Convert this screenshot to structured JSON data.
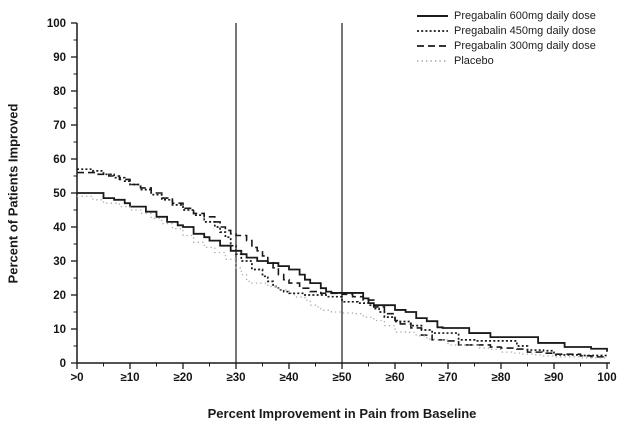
{
  "chart_data": {
    "type": "line",
    "subtype": "step",
    "title": "",
    "xlabel": "Percent Improvement in Pain from Baseline",
    "ylabel": "Percent of Patients Improved",
    "xlim": [
      0,
      100
    ],
    "ylim": [
      0,
      100
    ],
    "x_tick_values": [
      0,
      10,
      20,
      30,
      40,
      50,
      60,
      70,
      80,
      90,
      100
    ],
    "x_tick_labels": [
      ">0",
      "≥10",
      "≥20",
      "≥30",
      "≥40",
      "≥50",
      "≥60",
      "≥70",
      "≥80",
      "≥90",
      "100"
    ],
    "y_tick_values": [
      0,
      10,
      20,
      30,
      40,
      50,
      60,
      70,
      80,
      90,
      100
    ],
    "y_tick_labels": [
      "0",
      "10",
      "20",
      "30",
      "40",
      "50",
      "60",
      "70",
      "80",
      "90",
      "100"
    ],
    "minor_tick_step": 5,
    "grid": false,
    "reference_lines_x": [
      30,
      50
    ],
    "legend_position": "top-right",
    "axis_color": "#1a1a1a",
    "reference_line_color": "#3d3d3d",
    "series": [
      {
        "name": "Pregabalin 600mg daily dose",
        "style": "solid",
        "color": "#1a1a1a",
        "points": [
          [
            0,
            50
          ],
          [
            5,
            48.5
          ],
          [
            7,
            48
          ],
          [
            9,
            47
          ],
          [
            10,
            46
          ],
          [
            13,
            44.5
          ],
          [
            15,
            43
          ],
          [
            17,
            41.5
          ],
          [
            19,
            40.5
          ],
          [
            20,
            40
          ],
          [
            22,
            38
          ],
          [
            24,
            37
          ],
          [
            25,
            36
          ],
          [
            27,
            34.5
          ],
          [
            29,
            33
          ],
          [
            31,
            32
          ],
          [
            32,
            31
          ],
          [
            34,
            30
          ],
          [
            36,
            29.4
          ],
          [
            38,
            28.5
          ],
          [
            40,
            27.5
          ],
          [
            42,
            26
          ],
          [
            43,
            24.5
          ],
          [
            44,
            23.5
          ],
          [
            46,
            22
          ],
          [
            47,
            21
          ],
          [
            48,
            20.6
          ],
          [
            54,
            19
          ],
          [
            55,
            17.6
          ],
          [
            56,
            17
          ],
          [
            60,
            15.6
          ],
          [
            62,
            15
          ],
          [
            64,
            13.2
          ],
          [
            66,
            12.3
          ],
          [
            68,
            10.5
          ],
          [
            69,
            10.3
          ],
          [
            74,
            8.8
          ],
          [
            78,
            7.6
          ],
          [
            87,
            5.9
          ],
          [
            92,
            4.7
          ],
          [
            97,
            4.2
          ],
          [
            100,
            3.3
          ]
        ]
      },
      {
        "name": "Pregabalin 450mg daily dose",
        "style": "dense-dotted",
        "color": "#1a1a1a",
        "points": [
          [
            0,
            57
          ],
          [
            3,
            56.5
          ],
          [
            5,
            55.5
          ],
          [
            7,
            54.5
          ],
          [
            9,
            53.5
          ],
          [
            10,
            52.5
          ],
          [
            12,
            51
          ],
          [
            14,
            49.5
          ],
          [
            16,
            48
          ],
          [
            18,
            46.5
          ],
          [
            20,
            45
          ],
          [
            22,
            43.5
          ],
          [
            24,
            41.5
          ],
          [
            26,
            40
          ],
          [
            27,
            38.5
          ],
          [
            28,
            37
          ],
          [
            29,
            34.5
          ],
          [
            30,
            32
          ],
          [
            31,
            30
          ],
          [
            33,
            27.5
          ],
          [
            35,
            25.5
          ],
          [
            36,
            24
          ],
          [
            37,
            22.5
          ],
          [
            38,
            21.5
          ],
          [
            39,
            21
          ],
          [
            40,
            20.5
          ],
          [
            43,
            20
          ],
          [
            47,
            19.5
          ],
          [
            50,
            18
          ],
          [
            53,
            17.6
          ],
          [
            55,
            17
          ],
          [
            56,
            16
          ],
          [
            57,
            15
          ],
          [
            58,
            13.5
          ],
          [
            60,
            12.2
          ],
          [
            63,
            11
          ],
          [
            65,
            9.7
          ],
          [
            67,
            8.8
          ],
          [
            72,
            6.8
          ],
          [
            75,
            6.5
          ],
          [
            83,
            5
          ],
          [
            85,
            3.8
          ],
          [
            88,
            3.6
          ],
          [
            90,
            2.4
          ],
          [
            95,
            2.2
          ],
          [
            100,
            2.1
          ]
        ]
      },
      {
        "name": "Pregabalin 300mg daily dose",
        "style": "dashed",
        "color": "#1a1a1a",
        "points": [
          [
            0,
            56
          ],
          [
            4,
            55.5
          ],
          [
            6,
            55
          ],
          [
            8,
            54
          ],
          [
            10,
            52.5
          ],
          [
            12,
            51.5
          ],
          [
            14,
            50
          ],
          [
            16,
            48.5
          ],
          [
            18,
            47
          ],
          [
            20,
            45.5
          ],
          [
            22,
            44
          ],
          [
            24,
            43
          ],
          [
            26,
            41.5
          ],
          [
            27,
            40
          ],
          [
            28,
            39
          ],
          [
            29,
            38
          ],
          [
            30,
            37.5
          ],
          [
            32,
            36
          ],
          [
            33,
            34
          ],
          [
            34,
            33
          ],
          [
            35,
            31.5
          ],
          [
            36,
            29.5
          ],
          [
            37,
            28
          ],
          [
            38,
            26
          ],
          [
            39,
            24.5
          ],
          [
            40,
            23.5
          ],
          [
            42,
            22
          ],
          [
            44,
            21
          ],
          [
            46,
            20.5
          ],
          [
            50,
            20.2
          ],
          [
            52,
            19.5
          ],
          [
            54,
            18.5
          ],
          [
            56,
            16.5
          ],
          [
            58,
            14.5
          ],
          [
            60,
            12.5
          ],
          [
            61,
            11.5
          ],
          [
            63,
            10.3
          ],
          [
            65,
            8.2
          ],
          [
            67,
            6.8
          ],
          [
            70,
            6.5
          ],
          [
            72,
            5.3
          ],
          [
            78,
            4.7
          ],
          [
            80,
            4.4
          ],
          [
            83,
            4.1
          ],
          [
            85,
            3.2
          ],
          [
            88,
            2.9
          ],
          [
            90,
            2.6
          ],
          [
            95,
            2.1
          ],
          [
            97,
            1.8
          ],
          [
            100,
            1.6
          ]
        ]
      },
      {
        "name": "Placebo",
        "style": "dotted",
        "color": "#ababab",
        "points": [
          [
            0,
            49
          ],
          [
            3,
            48
          ],
          [
            5,
            47
          ],
          [
            8,
            46
          ],
          [
            10,
            45
          ],
          [
            12,
            44
          ],
          [
            14,
            42.5
          ],
          [
            16,
            41
          ],
          [
            18,
            39.5
          ],
          [
            20,
            37.5
          ],
          [
            22,
            35.5
          ],
          [
            24,
            34
          ],
          [
            26,
            32.5
          ],
          [
            28,
            30.5
          ],
          [
            30,
            28
          ],
          [
            31,
            26
          ],
          [
            32,
            24
          ],
          [
            33,
            23.5
          ],
          [
            36,
            22.5
          ],
          [
            38,
            21.5
          ],
          [
            40,
            20.5
          ],
          [
            41,
            19.4
          ],
          [
            43,
            18.5
          ],
          [
            44,
            17
          ],
          [
            45,
            16.5
          ],
          [
            46,
            15.5
          ],
          [
            48,
            15
          ],
          [
            50,
            14.7
          ],
          [
            52,
            14.5
          ],
          [
            54,
            13.5
          ],
          [
            56,
            12.5
          ],
          [
            58,
            11
          ],
          [
            60,
            9.1
          ],
          [
            62,
            9
          ],
          [
            64,
            8
          ],
          [
            66,
            7
          ],
          [
            68,
            6.8
          ],
          [
            70,
            5.3
          ],
          [
            76,
            4.4
          ],
          [
            78,
            4
          ],
          [
            80,
            3.2
          ],
          [
            82,
            2.9
          ],
          [
            84,
            2.6
          ],
          [
            86,
            2.4
          ],
          [
            88,
            2.1
          ],
          [
            90,
            1.8
          ],
          [
            95,
            1.5
          ],
          [
            100,
            1.2
          ]
        ]
      }
    ]
  }
}
